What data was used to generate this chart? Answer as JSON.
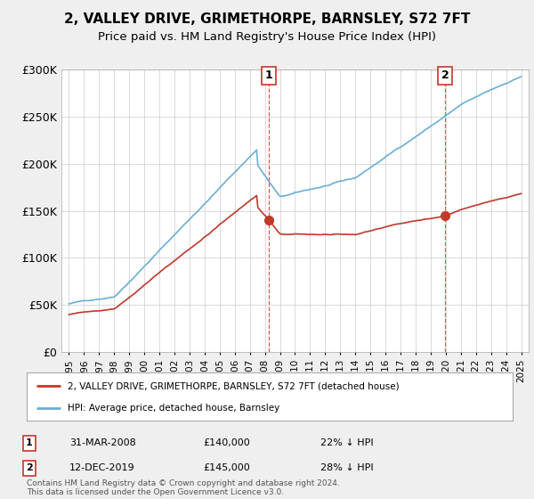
{
  "title": "2, VALLEY DRIVE, GRIMETHORPE, BARNSLEY, S72 7FT",
  "subtitle": "Price paid vs. HM Land Registry's House Price Index (HPI)",
  "ylim": [
    0,
    300000
  ],
  "yticks": [
    0,
    50000,
    100000,
    150000,
    200000,
    250000,
    300000
  ],
  "ytick_labels": [
    "£0",
    "£50K",
    "£100K",
    "£150K",
    "£200K",
    "£250K",
    "£300K"
  ],
  "sale1_date_num": 2008.25,
  "sale1_price": 140000,
  "sale1_label": "1",
  "sale1_date_str": "31-MAR-2008",
  "sale1_amount": "£140,000",
  "sale1_pct": "22% ↓ HPI",
  "sale2_date_num": 2019.95,
  "sale2_price": 145000,
  "sale2_label": "2",
  "sale2_date_str": "12-DEC-2019",
  "sale2_amount": "£145,000",
  "sale2_pct": "28% ↓ HPI",
  "hpi_color": "#6baed6",
  "price_color": "#c0392b",
  "vline_color": "#e05555",
  "background_color": "#efefef",
  "plot_bg_color": "#ffffff",
  "legend_label_price": "2, VALLEY DRIVE, GRIMETHORPE, BARNSLEY, S72 7FT (detached house)",
  "legend_label_hpi": "HPI: Average price, detached house, Barnsley",
  "footer": "Contains HM Land Registry data © Crown copyright and database right 2024.\nThis data is licensed under the Open Government Licence v3.0.",
  "title_fontsize": 11,
  "subtitle_fontsize": 9.5
}
